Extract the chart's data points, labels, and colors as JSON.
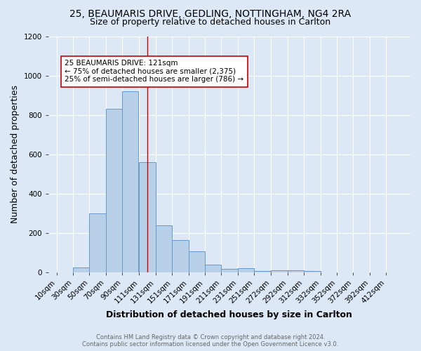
{
  "title_line1": "25, BEAUMARIS DRIVE, GEDLING, NOTTINGHAM, NG4 2RA",
  "title_line2": "Size of property relative to detached houses in Carlton",
  "xlabel": "Distribution of detached houses by size in Carlton",
  "ylabel_actual": "Number of detached properties",
  "categories": [
    "10sqm",
    "30sqm",
    "50sqm",
    "70sqm",
    "90sqm",
    "111sqm",
    "131sqm",
    "151sqm",
    "171sqm",
    "191sqm",
    "211sqm",
    "231sqm",
    "251sqm",
    "272sqm",
    "292sqm",
    "312sqm",
    "332sqm",
    "352sqm",
    "372sqm",
    "392sqm",
    "412sqm"
  ],
  "values": [
    0,
    25,
    300,
    830,
    920,
    560,
    240,
    165,
    105,
    37,
    18,
    22,
    8,
    10,
    10,
    7,
    0,
    0,
    0,
    0,
    0
  ],
  "bar_color": "#b8cfe8",
  "bar_edge_color": "#6699cc",
  "reference_line_x": 121,
  "reference_line_color": "#cc0000",
  "annotation_text": "25 BEAUMARIS DRIVE: 121sqm\n← 75% of detached houses are smaller (2,375)\n25% of semi-detached houses are larger (786) →",
  "annotation_box_color": "#ffffff",
  "annotation_box_edge_color": "#cc0000",
  "ylim": [
    0,
    1200
  ],
  "yticks": [
    0,
    200,
    400,
    600,
    800,
    1000,
    1200
  ],
  "footer_line1": "Contains HM Land Registry data © Crown copyright and database right 2024.",
  "footer_line2": "Contains public sector information licensed under the Open Government Licence v3.0.",
  "bg_color": "#dce8f5",
  "plot_bg_color": "#dce8f5",
  "bin_starts": [
    10,
    30,
    50,
    70,
    90,
    111,
    131,
    151,
    171,
    191,
    211,
    231,
    251,
    272,
    292,
    312,
    332,
    352,
    372,
    392,
    412
  ],
  "bin_width": 20,
  "title_fontsize": 10,
  "subtitle_fontsize": 9,
  "axis_label_fontsize": 9,
  "tick_fontsize": 7.5,
  "annotation_fontsize": 7.5,
  "footer_fontsize": 6
}
